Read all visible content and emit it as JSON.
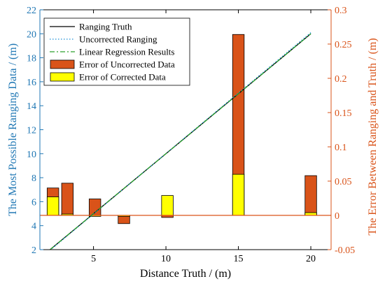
{
  "chart_data": {
    "type": "bar+line",
    "xlabel": "Distance Truth / (m)",
    "ylabel_left": "The Most Possible Ranging Data / (m)",
    "ylabel_right": "The Error Between Ranging and Truth / (m)",
    "xlim": [
      1.3,
      21.4
    ],
    "ylim_left": [
      2,
      22
    ],
    "ylim_right": [
      -0.05,
      0.3
    ],
    "x_ticks": [
      5,
      10,
      15,
      20
    ],
    "y_left_ticks": [
      2,
      4,
      6,
      8,
      10,
      12,
      14,
      16,
      18,
      20,
      22
    ],
    "y_right_ticks": [
      -0.05,
      0,
      0.05,
      0.1,
      0.15,
      0.2,
      0.25,
      0.3
    ],
    "y_right_tick_labels": [
      "-0.05",
      "0",
      "0.05",
      "0.1",
      "0.15",
      "0.2",
      "0.25",
      "0.3"
    ],
    "grid": false,
    "legend_position": "top-left",
    "colors": {
      "left_axis": "#1f77b4",
      "right_axis": "#d95319",
      "ranging_truth": "#000000",
      "uncorrected_ranging": "#1e90d6",
      "linear_regression": "#2ca02c",
      "error_uncorrected": "#d95319",
      "error_corrected": "#ffff00",
      "zero_line": "#d95319"
    },
    "lines": [
      {
        "name": "Ranging Truth",
        "style": "solid",
        "color_key": "ranging_truth",
        "x": [
          2,
          20
        ],
        "y": [
          2,
          20
        ]
      },
      {
        "name": "Uncorrected Ranging",
        "style": "dotted",
        "color_key": "uncorrected_ranging",
        "x": [
          2,
          20
        ],
        "y": [
          1.95,
          20.1
        ]
      },
      {
        "name": "Linear Regression Results",
        "style": "dashdot",
        "color_key": "linear_regression",
        "x": [
          2,
          20
        ],
        "y": [
          2,
          20
        ]
      }
    ],
    "bar_groups": [
      {
        "x": 2.2,
        "uncorrected": 0.04,
        "corrected": 0.027
      },
      {
        "x": 3.2,
        "uncorrected": 0.047,
        "corrected": 0.002
      },
      {
        "x": 5.1,
        "uncorrected": 0.024,
        "corrected": -0.001
      },
      {
        "x": 7.1,
        "uncorrected": -0.012,
        "corrected": -0.001
      },
      {
        "x": 10.1,
        "uncorrected": -0.003,
        "corrected": 0.029
      },
      {
        "x": 15.0,
        "uncorrected": 0.264,
        "corrected": 0.06
      },
      {
        "x": 20.0,
        "uncorrected": 0.058,
        "corrected": 0.004
      }
    ],
    "bar_width": 0.8,
    "legend": [
      {
        "label": "Ranging Truth",
        "kind": "line",
        "style": "solid",
        "color_key": "ranging_truth"
      },
      {
        "label": "Uncorrected Ranging",
        "kind": "line",
        "style": "dotted",
        "color_key": "uncorrected_ranging"
      },
      {
        "label": "Linear Regression Results",
        "kind": "line",
        "style": "dashdot",
        "color_key": "linear_regression"
      },
      {
        "label": "Error of Uncorrected Data",
        "kind": "patch",
        "color_key": "error_uncorrected"
      },
      {
        "label": "Error of Corrected Data",
        "kind": "patch",
        "color_key": "error_corrected"
      }
    ]
  }
}
